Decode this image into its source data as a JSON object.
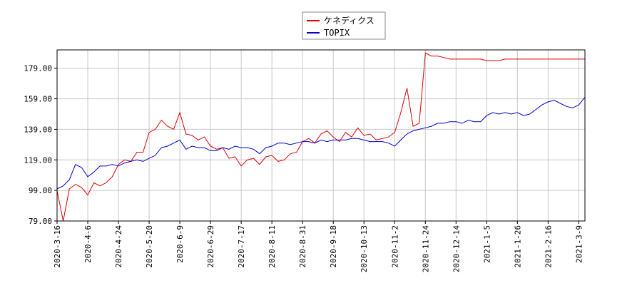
{
  "chart_data": {
    "type": "line",
    "categories": [
      "2020-3-16",
      null,
      null,
      null,
      null,
      "2020-4-6",
      null,
      null,
      null,
      null,
      "2020-4-24",
      null,
      null,
      null,
      null,
      "2020-5-20",
      null,
      null,
      null,
      null,
      "2020-6-9",
      null,
      null,
      null,
      null,
      "2020-6-29",
      null,
      null,
      null,
      null,
      "2020-7-17",
      null,
      null,
      null,
      null,
      "2020-8-11",
      null,
      null,
      null,
      null,
      "2020-8-31",
      null,
      null,
      null,
      null,
      "2020-9-18",
      null,
      null,
      null,
      null,
      "2020-10-13",
      null,
      null,
      null,
      null,
      "2020-11-2",
      null,
      null,
      null,
      null,
      "2020-11-24",
      null,
      null,
      null,
      null,
      "2020-12-14",
      null,
      null,
      null,
      null,
      "2021-1-5",
      null,
      null,
      null,
      null,
      "2021-1-26",
      null,
      null,
      null,
      null,
      "2021-2-16",
      null,
      null,
      null,
      null,
      "2021-3-9",
      null
    ],
    "series": [
      {
        "name": "ケネディクス",
        "color": "#dd0000",
        "values": [
          99,
          79,
          100,
          103,
          101,
          96,
          104,
          102,
          104,
          108,
          116,
          119,
          118,
          124,
          124,
          137,
          139,
          145,
          141,
          139,
          150,
          136,
          135,
          132,
          134,
          128,
          126,
          127,
          120,
          121,
          115,
          119,
          120,
          116,
          121,
          122,
          118,
          119,
          123,
          124,
          131,
          133,
          130,
          136,
          138,
          134,
          131,
          137,
          134,
          140,
          135,
          136,
          132,
          133,
          134,
          137,
          150,
          166,
          141,
          143,
          189,
          187,
          187,
          186,
          185,
          185,
          185,
          185,
          185,
          185,
          184,
          184,
          184,
          185,
          185,
          185,
          185,
          185,
          185,
          185,
          185,
          185,
          185,
          185,
          185,
          185,
          185
        ]
      },
      {
        "name": "TOPIX",
        "color": "#0000cc",
        "values": [
          100,
          102,
          106,
          116,
          114,
          108,
          111,
          115,
          115,
          116,
          115,
          117,
          118,
          119,
          118,
          120,
          122,
          127,
          128,
          130,
          132,
          126,
          128,
          127,
          127,
          125,
          125,
          127,
          126,
          128,
          127,
          127,
          126,
          123,
          127,
          128,
          130,
          130,
          129,
          130,
          131,
          131,
          130,
          132,
          131,
          132,
          132,
          132,
          133,
          133,
          132,
          131,
          131,
          131,
          130,
          128,
          132,
          136,
          138,
          139,
          140,
          141,
          143,
          143,
          144,
          144,
          143,
          145,
          144,
          144,
          148,
          150,
          149,
          150,
          149,
          150,
          148,
          149,
          152,
          155,
          157,
          158,
          156,
          154,
          153,
          155,
          160
        ]
      }
    ],
    "ylim": [
      79,
      191
    ],
    "yticks": [
      {
        "value": 79,
        "label": "79.00"
      },
      {
        "value": 99,
        "label": "99.00"
      },
      {
        "value": 119,
        "label": "119.00"
      },
      {
        "value": 139,
        "label": "139.00"
      },
      {
        "value": 159,
        "label": "159.00"
      },
      {
        "value": 179,
        "label": "179.00"
      }
    ],
    "grid": true
  }
}
